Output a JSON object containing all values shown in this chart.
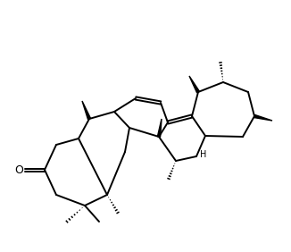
{
  "bg_color": "#ffffff",
  "lw": 1.4,
  "figsize": [
    3.26,
    2.82
  ],
  "dpi": 100
}
